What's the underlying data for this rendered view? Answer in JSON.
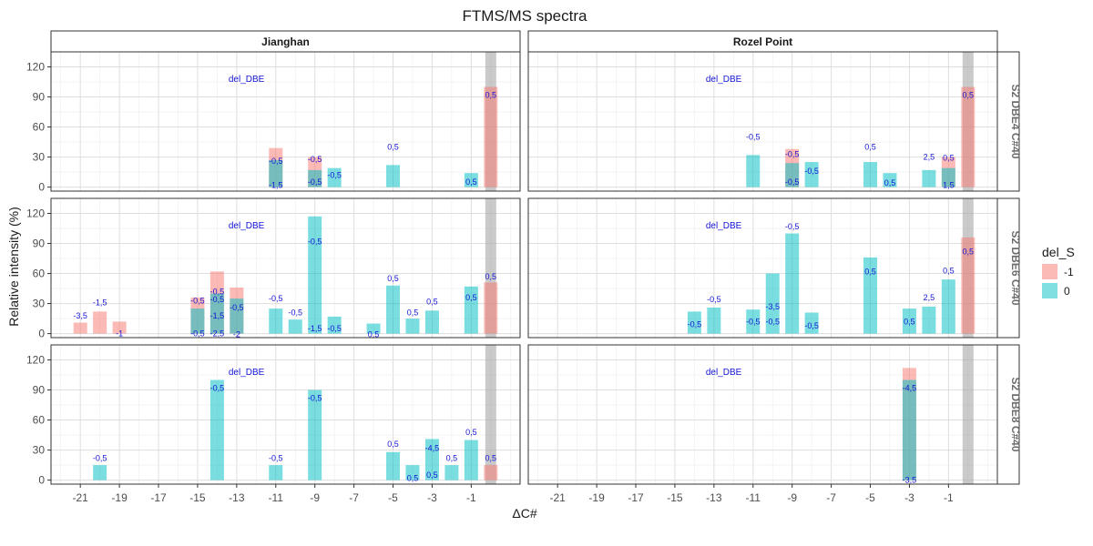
{
  "chart_data": {
    "type": "bar",
    "title": "FTMS/MS spectra",
    "xlabel": "ΔC#",
    "ylabel": "Relative intensity (%)",
    "xlim": [
      -22.5,
      1.5
    ],
    "ylim": [
      -4,
      135
    ],
    "x_ticks": [
      -21,
      -19,
      -17,
      -15,
      -13,
      -11,
      -9,
      -7,
      -5,
      -3,
      -1
    ],
    "y_ticks": [
      0,
      30,
      60,
      90,
      120
    ],
    "grid": true,
    "legend": {
      "title": "del_S",
      "placement": "right",
      "entries": [
        {
          "label": "-1",
          "color": "#F8766D"
        },
        {
          "label": "0",
          "color": "#00BFC4"
        }
      ]
    },
    "facet_columns": [
      "Jianghan",
      "Rozel Point"
    ],
    "facet_rows": [
      "S2 DBE4 C#40",
      "S2 DBE6 C#40",
      "S2 DBE8 C#40"
    ],
    "highlight_x": 0,
    "panel_annotation": "del_DBE",
    "panels": [
      {
        "col": "Jianghan",
        "row": "S2 DBE4 C#40",
        "bars": [
          {
            "x": -11,
            "del_S": "-1",
            "value": 39
          },
          {
            "x": -11,
            "del_S": "0",
            "value": 27
          },
          {
            "x": -9,
            "del_S": "-1",
            "value": 30
          },
          {
            "x": -9,
            "del_S": "0",
            "value": 17
          },
          {
            "x": -8,
            "del_S": "0",
            "value": 19
          },
          {
            "x": -5,
            "del_S": "0",
            "value": 22
          },
          {
            "x": -1,
            "del_S": "0",
            "value": 14
          },
          {
            "x": 0,
            "del_S": "-1",
            "value": 100
          }
        ],
        "labels": [
          {
            "x": -11,
            "y": 26,
            "text": "-0,5"
          },
          {
            "x": -11,
            "y": 2,
            "text": "-1,5"
          },
          {
            "x": -9,
            "y": 28,
            "text": "-0,5"
          },
          {
            "x": -9,
            "y": 5,
            "text": "-0,5"
          },
          {
            "x": -8,
            "y": 12,
            "text": "-0,5"
          },
          {
            "x": -5,
            "y": 40,
            "text": "0,5"
          },
          {
            "x": -1,
            "y": 5,
            "text": "0,5"
          },
          {
            "x": 0,
            "y": 92,
            "text": "0,5"
          }
        ]
      },
      {
        "col": "Rozel Point",
        "row": "S2 DBE4 C#40",
        "bars": [
          {
            "x": -11,
            "del_S": "0",
            "value": 32
          },
          {
            "x": -9,
            "del_S": "-1",
            "value": 38
          },
          {
            "x": -9,
            "del_S": "0",
            "value": 24
          },
          {
            "x": -8,
            "del_S": "0",
            "value": 25
          },
          {
            "x": -5,
            "del_S": "0",
            "value": 25
          },
          {
            "x": -4,
            "del_S": "0",
            "value": 14
          },
          {
            "x": -2,
            "del_S": "0",
            "value": 17
          },
          {
            "x": -1,
            "del_S": "-1",
            "value": 30
          },
          {
            "x": -1,
            "del_S": "0",
            "value": 19
          },
          {
            "x": 0,
            "del_S": "-1",
            "value": 100
          }
        ],
        "labels": [
          {
            "x": -11,
            "y": 50,
            "text": "-0,5"
          },
          {
            "x": -9,
            "y": 33,
            "text": "-0,5"
          },
          {
            "x": -9,
            "y": 5,
            "text": "-0,5"
          },
          {
            "x": -8,
            "y": 16,
            "text": "-0,5"
          },
          {
            "x": -5,
            "y": 40,
            "text": "0,5"
          },
          {
            "x": -4,
            "y": 4,
            "text": "0,5"
          },
          {
            "x": -2,
            "y": 30,
            "text": "2,5"
          },
          {
            "x": -1,
            "y": 29,
            "text": "0,5"
          },
          {
            "x": -1,
            "y": 2,
            "text": "1,5"
          },
          {
            "x": 0,
            "y": 92,
            "text": "0,5"
          }
        ]
      },
      {
        "col": "Jianghan",
        "row": "S2 DBE6 C#40",
        "bars": [
          {
            "x": -21,
            "del_S": "-1",
            "value": 11
          },
          {
            "x": -20,
            "del_S": "-1",
            "value": 22
          },
          {
            "x": -19,
            "del_S": "-1",
            "value": 12
          },
          {
            "x": -15,
            "del_S": "-1",
            "value": 36
          },
          {
            "x": -15,
            "del_S": "0",
            "value": 25
          },
          {
            "x": -14,
            "del_S": "-1",
            "value": 62
          },
          {
            "x": -14,
            "del_S": "0",
            "value": 40
          },
          {
            "x": -13,
            "del_S": "-1",
            "value": 46
          },
          {
            "x": -13,
            "del_S": "0",
            "value": 35
          },
          {
            "x": -11,
            "del_S": "0",
            "value": 25
          },
          {
            "x": -10,
            "del_S": "0",
            "value": 14
          },
          {
            "x": -9,
            "del_S": "0",
            "value": 117
          },
          {
            "x": -8,
            "del_S": "0",
            "value": 17
          },
          {
            "x": -6,
            "del_S": "0",
            "value": 10
          },
          {
            "x": -5,
            "del_S": "0",
            "value": 48
          },
          {
            "x": -4,
            "del_S": "0",
            "value": 15
          },
          {
            "x": -3,
            "del_S": "0",
            "value": 23
          },
          {
            "x": -1,
            "del_S": "0",
            "value": 47
          },
          {
            "x": 0,
            "del_S": "-1",
            "value": 51
          }
        ],
        "labels": [
          {
            "x": -21,
            "y": 18,
            "text": "-3,5"
          },
          {
            "x": -20,
            "y": 31,
            "text": "-1,5"
          },
          {
            "x": -19,
            "y": 0,
            "text": "-1"
          },
          {
            "x": -15,
            "y": 33,
            "text": "-0,5"
          },
          {
            "x": -15,
            "y": 0,
            "text": "-0,5"
          },
          {
            "x": -14,
            "y": 42,
            "text": "-0,5"
          },
          {
            "x": -14,
            "y": 34,
            "text": "-0,5"
          },
          {
            "x": -14,
            "y": 18,
            "text": "-1,5"
          },
          {
            "x": -14,
            "y": 0,
            "text": "-2,5"
          },
          {
            "x": -13,
            "y": 26,
            "text": "-0,5"
          },
          {
            "x": -13,
            "y": -1,
            "text": "-2"
          },
          {
            "x": -11,
            "y": 35,
            "text": "-0,5"
          },
          {
            "x": -10,
            "y": 21,
            "text": "-0,5"
          },
          {
            "x": -9,
            "y": 92,
            "text": "-0,5"
          },
          {
            "x": -9,
            "y": 5,
            "text": "-1,5"
          },
          {
            "x": -8,
            "y": 5,
            "text": "-0,5"
          },
          {
            "x": -6,
            "y": -1,
            "text": "0,5"
          },
          {
            "x": -5,
            "y": 55,
            "text": "0,5"
          },
          {
            "x": -4,
            "y": 21,
            "text": "0,5"
          },
          {
            "x": -3,
            "y": 32,
            "text": "0,5"
          },
          {
            "x": -1,
            "y": 36,
            "text": "0,5"
          },
          {
            "x": 0,
            "y": 57,
            "text": "0,5"
          }
        ]
      },
      {
        "col": "Rozel Point",
        "row": "S2 DBE6 C#40",
        "bars": [
          {
            "x": -14,
            "del_S": "0",
            "value": 22
          },
          {
            "x": -13,
            "del_S": "0",
            "value": 26
          },
          {
            "x": -11,
            "del_S": "0",
            "value": 24
          },
          {
            "x": -10,
            "del_S": "0",
            "value": 60
          },
          {
            "x": -9,
            "del_S": "0",
            "value": 100
          },
          {
            "x": -8,
            "del_S": "0",
            "value": 21
          },
          {
            "x": -5,
            "del_S": "0",
            "value": 76
          },
          {
            "x": -3,
            "del_S": "0",
            "value": 25
          },
          {
            "x": -2,
            "del_S": "0",
            "value": 27
          },
          {
            "x": -1,
            "del_S": "0",
            "value": 54
          },
          {
            "x": 0,
            "del_S": "-1",
            "value": 96
          }
        ],
        "labels": [
          {
            "x": -14,
            "y": 9,
            "text": "-0,5"
          },
          {
            "x": -13,
            "y": 34,
            "text": "-0,5"
          },
          {
            "x": -11,
            "y": 12,
            "text": "-0,5"
          },
          {
            "x": -10,
            "y": 27,
            "text": "-3,5"
          },
          {
            "x": -10,
            "y": 12,
            "text": "-0,5"
          },
          {
            "x": -9,
            "y": 107,
            "text": "-0,5"
          },
          {
            "x": -8,
            "y": 8,
            "text": "-0,5"
          },
          {
            "x": -5,
            "y": 62,
            "text": "0,5"
          },
          {
            "x": -3,
            "y": 12,
            "text": "0,5"
          },
          {
            "x": -2,
            "y": 36,
            "text": "2,5"
          },
          {
            "x": -1,
            "y": 63,
            "text": "0,5"
          },
          {
            "x": 0,
            "y": 82,
            "text": "0,5"
          }
        ]
      },
      {
        "col": "Jianghan",
        "row": "S2 DBE8 C#40",
        "bars": [
          {
            "x": -20,
            "del_S": "0",
            "value": 15
          },
          {
            "x": -14,
            "del_S": "0",
            "value": 100
          },
          {
            "x": -11,
            "del_S": "0",
            "value": 15
          },
          {
            "x": -9,
            "del_S": "0",
            "value": 90
          },
          {
            "x": -5,
            "del_S": "0",
            "value": 28
          },
          {
            "x": -4,
            "del_S": "0",
            "value": 15
          },
          {
            "x": -3,
            "del_S": "0",
            "value": 41
          },
          {
            "x": -2,
            "del_S": "0",
            "value": 15
          },
          {
            "x": -1,
            "del_S": "0",
            "value": 40
          },
          {
            "x": 0,
            "del_S": "-1",
            "value": 15
          }
        ],
        "labels": [
          {
            "x": -20,
            "y": 22,
            "text": "-0,5"
          },
          {
            "x": -14,
            "y": 92,
            "text": "-0,5"
          },
          {
            "x": -11,
            "y": 22,
            "text": "-0,5"
          },
          {
            "x": -9,
            "y": 82,
            "text": "-0,5"
          },
          {
            "x": -5,
            "y": 36,
            "text": "0,5"
          },
          {
            "x": -4,
            "y": 2,
            "text": "0,5"
          },
          {
            "x": -3,
            "y": 32,
            "text": "-4,5"
          },
          {
            "x": -3,
            "y": 5,
            "text": "0,5"
          },
          {
            "x": -2,
            "y": 22,
            "text": "0,5"
          },
          {
            "x": -1,
            "y": 48,
            "text": "0,5"
          },
          {
            "x": 0,
            "y": 22,
            "text": "0,5"
          }
        ]
      },
      {
        "col": "Rozel Point",
        "row": "S2 DBE8 C#40",
        "bars": [
          {
            "x": -3,
            "del_S": "-1",
            "value": 112
          },
          {
            "x": -3,
            "del_S": "0",
            "value": 100
          }
        ],
        "labels": [
          {
            "x": -3,
            "y": 92,
            "text": "-4,5"
          },
          {
            "x": -3,
            "y": 0,
            "text": "-3,5"
          }
        ]
      }
    ]
  }
}
